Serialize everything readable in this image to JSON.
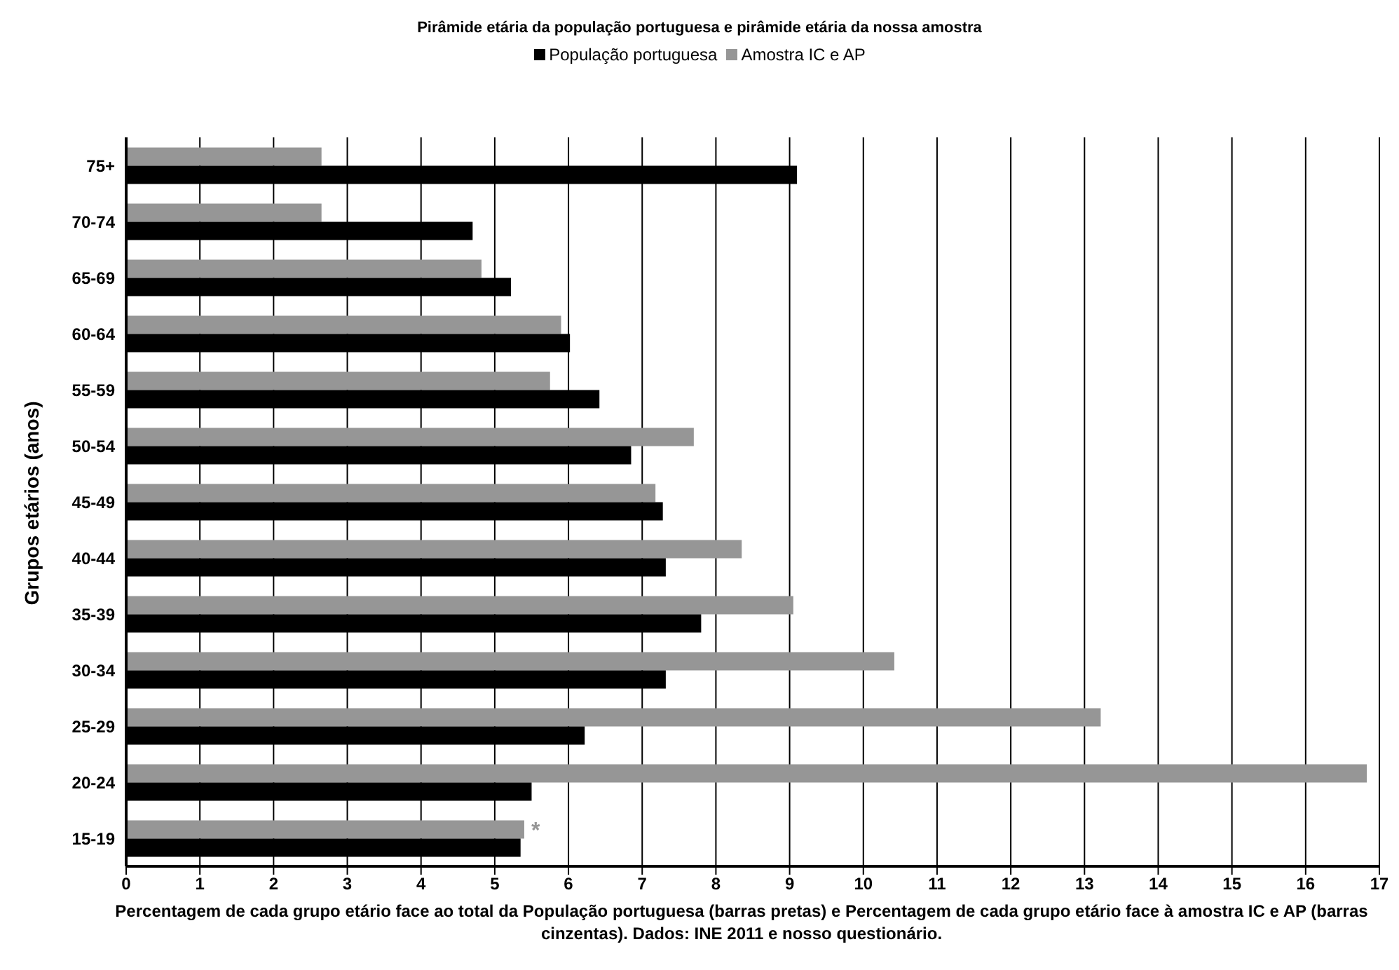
{
  "chart_data": {
    "type": "bar",
    "orientation": "horizontal",
    "title": "Pirâmide etária da população portuguesa e pirâmide etária da nossa amostra",
    "xlabel": "Percentagem de cada grupo etário face ao total da População portuguesa (barras pretas) e Percentagem de cada grupo etário face à amostra IC e AP (barras cinzentas). Dados: INE 2011 e nosso questionário.",
    "ylabel": "Grupos etários (anos)",
    "categories": [
      "75+",
      "70-74",
      "65-69",
      "60-64",
      "55-59",
      "50-54",
      "45-49",
      "40-44",
      "35-39",
      "30-34",
      "25-29",
      "20-24",
      "15-19"
    ],
    "series": [
      {
        "name": "População portuguesa",
        "color": "#000000",
        "values": [
          9.1,
          4.7,
          5.22,
          6.02,
          6.42,
          6.85,
          7.28,
          7.32,
          7.8,
          7.32,
          6.22,
          5.5,
          5.35
        ]
      },
      {
        "name": "Amostra IC e AP",
        "color": "#969696",
        "values": [
          2.65,
          2.65,
          4.82,
          5.9,
          5.75,
          7.7,
          7.18,
          8.35,
          9.05,
          10.42,
          13.22,
          16.83,
          5.4
        ]
      }
    ],
    "xlim": [
      0,
      17
    ],
    "xticks": [
      0,
      1,
      2,
      3,
      4,
      5,
      6,
      7,
      8,
      9,
      10,
      11,
      12,
      13,
      14,
      15,
      16,
      17
    ],
    "grid": "x",
    "legend": "top",
    "annotations": [
      {
        "text": "*",
        "x": 5.4,
        "y": "15-19"
      }
    ]
  }
}
